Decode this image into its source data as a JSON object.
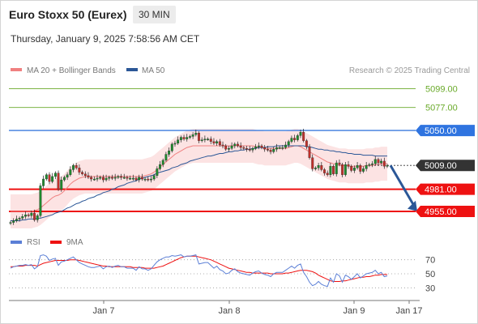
{
  "header": {
    "title": "Euro Stoxx 50 (Eurex)",
    "timeframe": "30 MIN",
    "datetime": "Thursday, January 9, 2025 7:58:56 AM CET"
  },
  "chart_data": {
    "type": "candlestick",
    "title": "Euro Stoxx 50 (Eurex)",
    "legend": [
      {
        "name": "MA 20 + Bollinger Bands",
        "color": "#f08080"
      },
      {
        "name": "MA 50",
        "color": "#2b5797"
      }
    ],
    "credit": "Research © 2025 Trading Central",
    "price_axis": {
      "range": [
        4935,
        5110
      ]
    },
    "x_ticks": [
      "Jan 7",
      "Jan 8",
      "Jan 9",
      "Jan 17"
    ],
    "price_levels": [
      {
        "label": "5099.00",
        "value": 5099,
        "kind": "target",
        "color": "#6aaa2a"
      },
      {
        "label": "5077.00",
        "value": 5077,
        "kind": "target",
        "color": "#6aaa2a"
      },
      {
        "label": "5050.00",
        "value": 5050,
        "kind": "pivot",
        "color": "#3a7bde"
      },
      {
        "label": "5009.00",
        "value": 5009,
        "kind": "last",
        "color": "#333333"
      },
      {
        "label": "4981.00",
        "value": 4981,
        "kind": "support",
        "color": "#ee1111"
      },
      {
        "label": "4955.00",
        "value": 4955,
        "kind": "support",
        "color": "#ee1111"
      }
    ],
    "forecast_arrow": {
      "from": 5009,
      "to": 4960,
      "color": "#2b5797"
    },
    "close_series": [
      4942,
      4944,
      4946,
      4947,
      4949,
      4951,
      4950,
      4953,
      4945,
      4950,
      4985,
      4993,
      4998,
      4990,
      4996,
      5000,
      4981,
      4992,
      4995,
      4998,
      5004,
      5009,
      5006,
      5001,
      4999,
      4997,
      4995,
      4993,
      4993,
      4994,
      4995,
      4992,
      4994,
      4995,
      4994,
      4995,
      4996,
      4995,
      4995,
      4994,
      4994,
      4994,
      4992,
      4995,
      4993,
      4993,
      4992,
      4993,
      4997,
      5005,
      5010,
      5015,
      5022,
      5026,
      5034,
      5035,
      5039,
      5042,
      5040,
      5042,
      5043,
      5045,
      5047,
      5038,
      5039,
      5040,
      5040,
      5037,
      5035,
      5037,
      5033,
      5032,
      5028,
      5029,
      5032,
      5034,
      5032,
      5030,
      5029,
      5028,
      5027,
      5029,
      5031,
      5032,
      5030,
      5028,
      5027,
      5025,
      5028,
      5030,
      5030,
      5030,
      5033,
      5037,
      5041,
      5039,
      5044,
      5048,
      5038,
      5031,
      5018,
      5005,
      5006,
      5009,
      5004,
      5000,
      4998,
      5008,
      4999,
      5012,
      5010,
      4998,
      5010,
      5008,
      5003,
      5006,
      5009,
      5002,
      5005,
      5009,
      5010,
      5011,
      5016,
      5012,
      5014,
      5008,
      5009
    ],
    "ma20_series": [
      4955,
      4955,
      4955,
      4955,
      4955,
      4955,
      4955,
      4955,
      4956,
      4957,
      4959,
      4962,
      4965,
      4968,
      4971,
      4973,
      4974,
      4976,
      4979,
      4983,
      4987,
      4990,
      4992,
      4994,
      4995,
      4996,
      4996,
      4996,
      4996,
      4996,
      4996,
      4996,
      4996,
      4996,
      4996,
      4996,
      4996,
      4996,
      4996,
      4996,
      4996,
      4996,
      4996,
      4996,
      4996,
      4997,
      4998,
      4999,
      5001,
      5004,
      5007,
      5010,
      5013,
      5016,
      5019,
      5022,
      5024,
      5026,
      5028,
      5030,
      5031,
      5032,
      5032,
      5032,
      5032,
      5032,
      5032,
      5032,
      5032,
      5032,
      5032,
      5032,
      5032,
      5032,
      5032,
      5032,
      5032,
      5032,
      5032,
      5032,
      5032,
      5032,
      5031,
      5030,
      5030,
      5029,
      5029,
      5029,
      5029,
      5029,
      5029,
      5029,
      5029,
      5030,
      5031,
      5032,
      5032,
      5031,
      5029,
      5027,
      5025,
      5023,
      5021,
      5019,
      5017,
      5015,
      5013,
      5012,
      5011,
      5010,
      5009,
      5009,
      5009,
      5008,
      5008,
      5008,
      5008,
      5008,
      5008,
      5009,
      5009,
      5009,
      5010,
      5010,
      5011,
      5011,
      5011
    ],
    "ma50_series": [
      4944,
      4944,
      4944,
      4944,
      4945,
      4945,
      4946,
      4946,
      4946,
      4947,
      4947,
      4948,
      4949,
      4950,
      4951,
      4953,
      4954,
      4955,
      4957,
      4959,
      4960,
      4962,
      4964,
      4965,
      4967,
      4968,
      4970,
      4971,
      4972,
      4974,
      4975,
      4977,
      4978,
      4979,
      4981,
      4982,
      4984,
      4985,
      4986,
      4988,
      4989,
      4990,
      4991,
      4993,
      4994,
      4995,
      4996,
      4997,
      4998,
      5000,
      5001,
      5002,
      5003,
      5004,
      5006,
      5007,
      5008,
      5010,
      5011,
      5012,
      5014,
      5015,
      5016,
      5017,
      5018,
      5019,
      5020,
      5020,
      5021,
      5022,
      5023,
      5023,
      5024,
      5025,
      5025,
      5026,
      5026,
      5027,
      5027,
      5028,
      5028,
      5029,
      5029,
      5030,
      5030,
      5030,
      5031,
      5031,
      5031,
      5032,
      5032,
      5032,
      5032,
      5032,
      5032,
      5032,
      5032,
      5032,
      5032,
      5031,
      5031,
      5030,
      5029,
      5028,
      5028,
      5027,
      5027,
      5026,
      5026,
      5025,
      5025,
      5024,
      5024,
      5023,
      5023,
      5022,
      5022,
      5022,
      5021,
      5021,
      5021,
      5021,
      5020,
      5020,
      5020,
      5020,
      5020
    ],
    "bollinger_width": 20,
    "rsi_panel": {
      "legend": [
        {
          "name": "RSI",
          "color": "#5b7fd6"
        },
        {
          "name": "9MA",
          "color": "#ee1111"
        }
      ],
      "levels": [
        {
          "label": "70",
          "value": 70
        },
        {
          "label": "50",
          "value": 50
        },
        {
          "label": "30",
          "value": 30
        }
      ],
      "range": [
        20,
        80
      ],
      "rsi": [
        58,
        60,
        61,
        62,
        62,
        63,
        62,
        63,
        57,
        60,
        76,
        77,
        75,
        69,
        71,
        72,
        62,
        67,
        68,
        70,
        72,
        74,
        70,
        66,
        64,
        62,
        60,
        59,
        59,
        60,
        61,
        57,
        60,
        61,
        59,
        61,
        62,
        60,
        60,
        58,
        58,
        58,
        55,
        60,
        57,
        57,
        55,
        57,
        62,
        67,
        70,
        72,
        74,
        74,
        76,
        75,
        76,
        77,
        74,
        75,
        75,
        76,
        77,
        64,
        65,
        66,
        66,
        62,
        58,
        61,
        56,
        54,
        50,
        51,
        55,
        57,
        53,
        51,
        50,
        49,
        48,
        51,
        53,
        54,
        51,
        49,
        48,
        46,
        50,
        52,
        52,
        52,
        55,
        58,
        61,
        58,
        62,
        64,
        52,
        46,
        38,
        33,
        35,
        39,
        35,
        33,
        32,
        44,
        38,
        50,
        47,
        38,
        48,
        46,
        42,
        46,
        50,
        44,
        47,
        50,
        51,
        52,
        55,
        50,
        52,
        46,
        47
      ],
      "ma9": [
        60,
        60,
        61,
        61,
        61,
        62,
        62,
        62,
        62,
        61,
        63,
        65,
        66,
        67,
        68,
        69,
        69,
        69,
        69,
        69,
        70,
        70,
        70,
        69,
        68,
        67,
        66,
        65,
        64,
        63,
        62,
        61,
        61,
        60,
        60,
        60,
        60,
        60,
        60,
        60,
        60,
        59,
        59,
        59,
        59,
        58,
        58,
        58,
        58,
        59,
        60,
        61,
        63,
        65,
        67,
        69,
        71,
        73,
        74,
        75,
        75,
        75,
        75,
        74,
        73,
        72,
        71,
        70,
        68,
        66,
        64,
        62,
        60,
        58,
        57,
        56,
        55,
        54,
        53,
        52,
        52,
        51,
        51,
        51,
        51,
        51,
        51,
        50,
        50,
        50,
        50,
        50,
        51,
        51,
        52,
        53,
        54,
        55,
        55,
        55,
        54,
        53,
        51,
        48,
        46,
        44,
        42,
        40,
        39,
        39,
        39,
        40,
        40,
        41,
        42,
        43,
        44,
        45,
        45,
        46,
        46,
        47,
        48,
        48,
        49,
        49,
        49
      ]
    }
  }
}
